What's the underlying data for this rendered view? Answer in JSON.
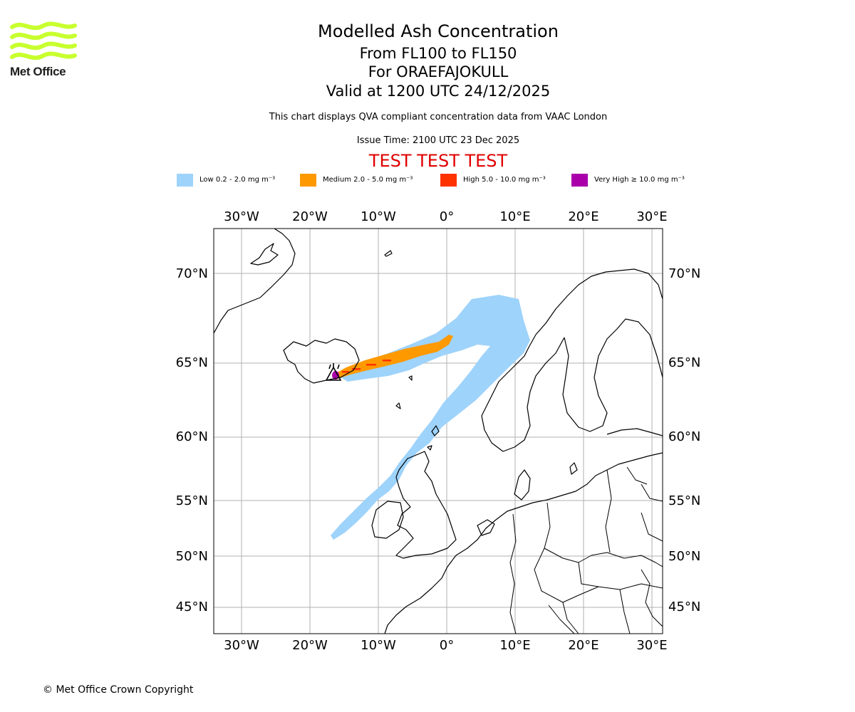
{
  "logo": {
    "text": "Met Office"
  },
  "header": {
    "title": "Modelled Ash Concentration",
    "levels": "From FL100 to FL150",
    "volcano": "For ORAEFAJOKULL",
    "valid": "Valid at 1200 UTC 24/12/2025",
    "compliance": "This chart displays QVA compliant concentration data from VAAC London",
    "issue": "Issue Time: 2100 UTC 23 Dec 2025",
    "test": "TEST TEST TEST"
  },
  "legend": [
    {
      "label": "Low 0.2 - 2.0 mg m⁻³",
      "color": "#9ed3fb"
    },
    {
      "label": "Medium 2.0 - 5.0 mg m⁻³",
      "color": "#ff9900"
    },
    {
      "label": "High 5.0 - 10.0 mg m⁻³",
      "color": "#ff3300"
    },
    {
      "label": "Very High ≥ 10.0 mg m⁻³",
      "color": "#aa00aa"
    }
  ],
  "map": {
    "lon_labels": [
      "30°W",
      "20°W",
      "10°W",
      "0°",
      "10°E",
      "20°E",
      "30°E"
    ],
    "lat_labels": [
      "70°N",
      "65°N",
      "60°N",
      "55°N",
      "50°N",
      "45°N"
    ],
    "colors": {
      "low": "#9ed3fb",
      "medium": "#ff9900",
      "high": "#ff3300",
      "very_high": "#aa00aa",
      "grid": "#b0b0b0",
      "coast": "#000000"
    },
    "volcano_icon": "volcano-icon"
  },
  "footer": {
    "copyright": "© Met Office Crown Copyright"
  }
}
